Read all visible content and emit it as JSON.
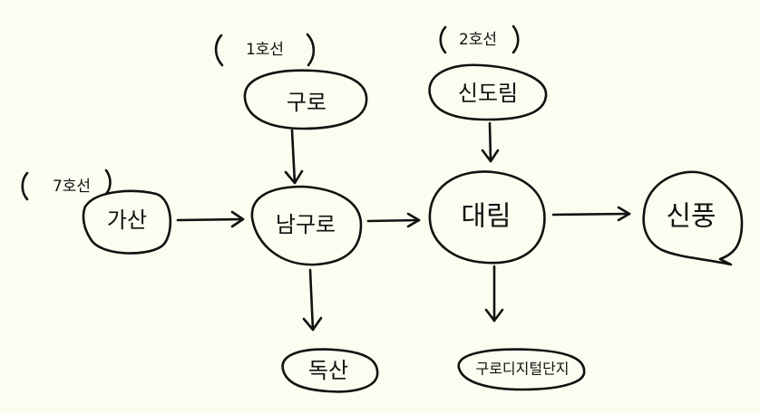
{
  "colors": {
    "background": "#fdfcf0",
    "ink": "#111111"
  },
  "groups": {
    "line1": "1호선",
    "line2": "2호선",
    "line7": "7호선"
  },
  "nodes": {
    "gasan": "가산",
    "guro": "구로",
    "namguro": "남구로",
    "daerim": "대림",
    "sinpung": "신풍",
    "sindorim": "신도림",
    "doksan": "독산",
    "guro_digital": "구로디지털단지"
  },
  "edges": [
    {
      "from": "gasan",
      "to": "namguro"
    },
    {
      "from": "guro",
      "to": "namguro"
    },
    {
      "from": "namguro",
      "to": "daerim"
    },
    {
      "from": "namguro",
      "to": "doksan"
    },
    {
      "from": "sindorim",
      "to": "daerim"
    },
    {
      "from": "daerim",
      "to": "sinpung"
    },
    {
      "from": "daerim",
      "to": "guro_digital"
    }
  ]
}
